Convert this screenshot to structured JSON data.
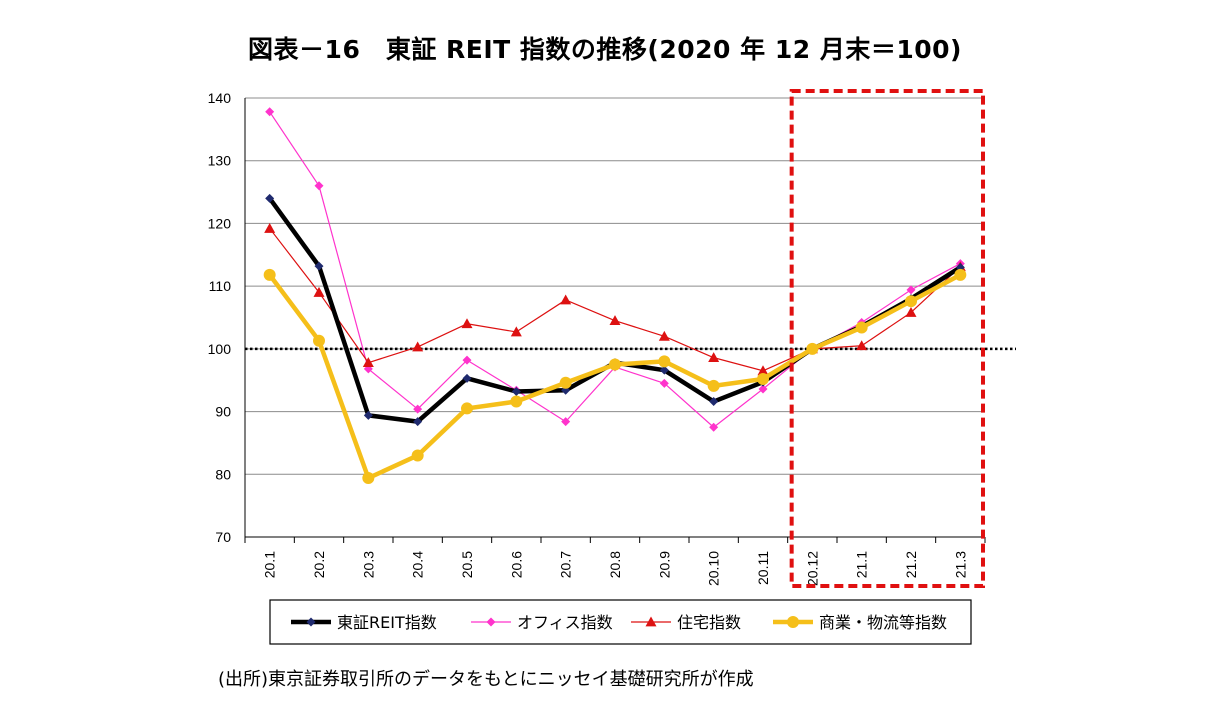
{
  "chart_data": {
    "type": "line",
    "title": "図表－16　東証 REIT 指数の推移(2020 年 12 月末＝100)",
    "categories": [
      "20.1",
      "20.2",
      "20.3",
      "20.4",
      "20.5",
      "20.6",
      "20.7",
      "20.8",
      "20.9",
      "20.10",
      "20.11",
      "20.12",
      "21.1",
      "21.2",
      "21.3"
    ],
    "ylim": [
      70,
      140
    ],
    "yticks": [
      70,
      80,
      90,
      100,
      110,
      120,
      130,
      140
    ],
    "reference_line": 100,
    "highlight_range": [
      "20.12",
      "21.3"
    ],
    "legend_position": "bottom",
    "series": [
      {
        "name": "東証REIT指数",
        "color": "#000000",
        "marker": "diamond",
        "marker_color": "#1f2a6e",
        "values": [
          124.0,
          113.2,
          89.4,
          88.4,
          95.3,
          93.2,
          93.4,
          97.8,
          96.6,
          91.6,
          94.7,
          100.0,
          103.6,
          108.0,
          113.0
        ]
      },
      {
        "name": "オフィス指数",
        "color": "#ff33cc",
        "marker": "diamond",
        "marker_color": "#ff33cc",
        "values": [
          137.8,
          126.0,
          96.8,
          90.4,
          98.2,
          93.4,
          88.4,
          97.1,
          94.5,
          87.5,
          93.6,
          100.0,
          104.2,
          109.4,
          113.6
        ]
      },
      {
        "name": "住宅指数",
        "color": "#dd1111",
        "marker": "triangle",
        "marker_color": "#dd1111",
        "values": [
          119.2,
          109.0,
          97.8,
          100.3,
          104.0,
          102.7,
          107.8,
          104.5,
          102.0,
          98.6,
          96.5,
          100.0,
          100.5,
          105.8,
          113.1
        ]
      },
      {
        "name": "商業・物流等指数",
        "color": "#f5bf1a",
        "marker": "circle",
        "marker_color": "#f5bf1a",
        "values": [
          111.8,
          101.3,
          79.4,
          83.0,
          90.5,
          91.6,
          94.6,
          97.5,
          98.0,
          94.1,
          95.2,
          100.0,
          103.4,
          107.6,
          111.8
        ]
      }
    ]
  },
  "source": "(出所)東京証券取引所のデータをもとにニッセイ基礎研究所が作成"
}
